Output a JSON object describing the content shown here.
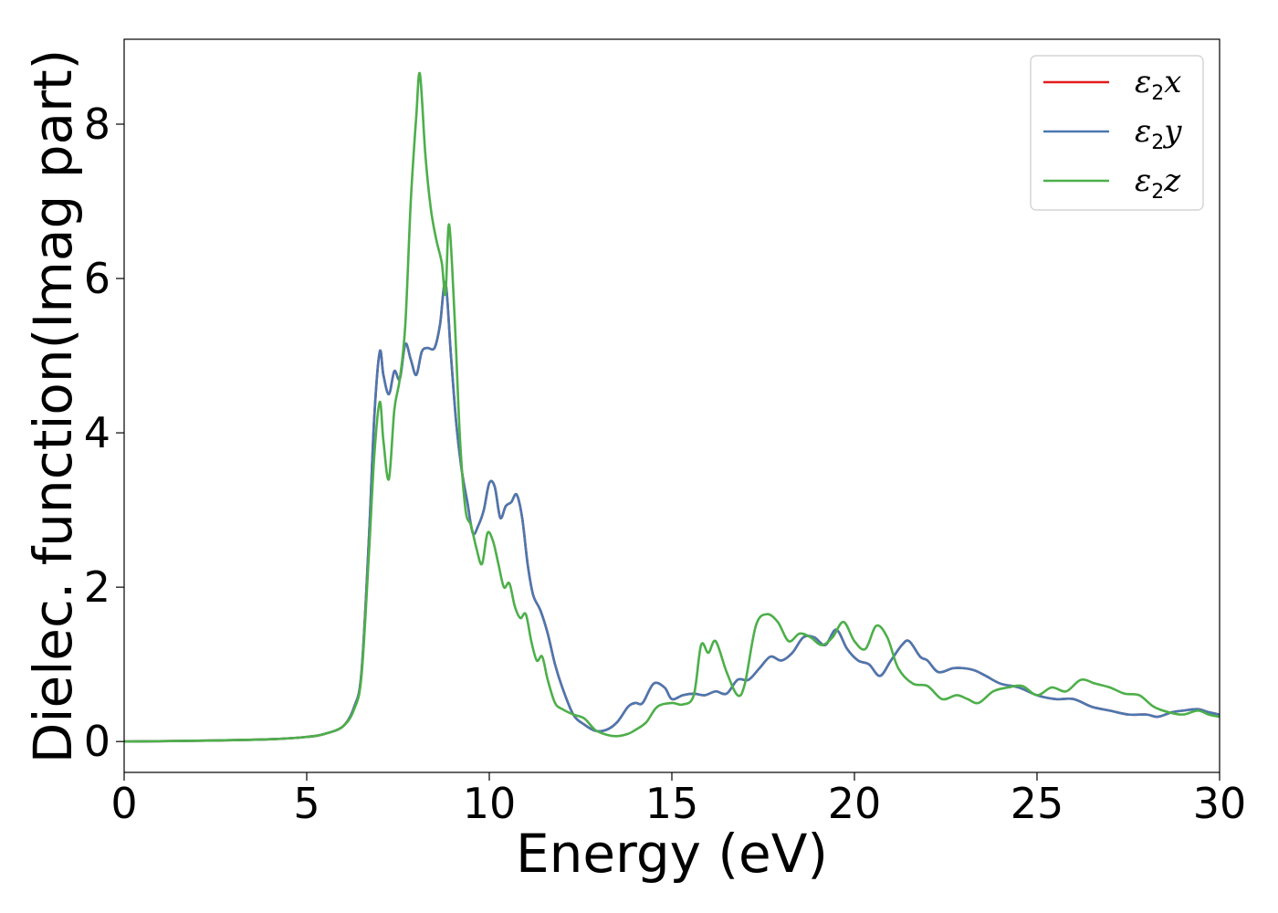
{
  "chart_data": {
    "type": "line",
    "title": "",
    "xlabel": "Energy (eV)",
    "ylabel": "Dielec. function(Imag part)",
    "xlim": [
      0,
      30
    ],
    "ylim": [
      -0.4,
      9.1
    ],
    "xticks": [
      0,
      5,
      10,
      15,
      20,
      25,
      30
    ],
    "yticks": [
      0,
      2,
      4,
      6,
      8
    ],
    "grid": false,
    "legend_position": "top-right",
    "series": [
      {
        "name": "ε2x",
        "legend_base": "ε",
        "legend_sub": "2",
        "legend_var": "x",
        "color": "#e41a1c",
        "x": [
          0,
          2,
          4,
          5,
          5.5,
          6,
          6.3,
          6.5,
          6.7,
          6.85,
          7.0,
          7.1,
          7.25,
          7.4,
          7.55,
          7.7,
          7.85,
          8.0,
          8.15,
          8.3,
          8.5,
          8.65,
          8.8,
          8.95,
          9.1,
          9.25,
          9.4,
          9.55,
          9.7,
          9.85,
          10.0,
          10.15,
          10.3,
          10.45,
          10.6,
          10.75,
          10.9,
          11.05,
          11.2,
          11.4,
          11.6,
          11.8,
          12.0,
          12.3,
          12.6,
          12.9,
          13.2,
          13.5,
          13.8,
          14.0,
          14.2,
          14.5,
          14.8,
          15.0,
          15.3,
          15.6,
          15.9,
          16.2,
          16.5,
          16.8,
          17.1,
          17.4,
          17.7,
          18.0,
          18.3,
          18.6,
          18.9,
          19.2,
          19.5,
          19.8,
          20.1,
          20.4,
          20.7,
          21.0,
          21.3,
          21.5,
          21.8,
          22.0,
          22.3,
          22.7,
          23.0,
          23.3,
          23.6,
          24.0,
          24.5,
          25.0,
          25.5,
          26.0,
          26.5,
          27.0,
          27.5,
          28.0,
          28.3,
          28.7,
          29.0,
          29.4,
          29.7,
          30.0
        ],
        "values": [
          0.0,
          0.01,
          0.03,
          0.06,
          0.1,
          0.2,
          0.45,
          0.9,
          2.6,
          4.2,
          5.05,
          4.75,
          4.5,
          4.8,
          4.7,
          5.15,
          4.95,
          4.75,
          5.05,
          5.1,
          5.1,
          5.4,
          5.95,
          5.0,
          4.1,
          3.5,
          3.1,
          2.7,
          2.8,
          3.0,
          3.35,
          3.3,
          2.9,
          3.05,
          3.1,
          3.2,
          2.9,
          2.3,
          1.9,
          1.7,
          1.4,
          1.0,
          0.7,
          0.35,
          0.22,
          0.14,
          0.15,
          0.25,
          0.45,
          0.5,
          0.5,
          0.75,
          0.7,
          0.55,
          0.6,
          0.62,
          0.6,
          0.65,
          0.62,
          0.8,
          0.8,
          0.95,
          1.1,
          1.05,
          1.15,
          1.35,
          1.35,
          1.25,
          1.45,
          1.2,
          1.05,
          1.0,
          0.85,
          1.05,
          1.25,
          1.3,
          1.1,
          1.05,
          0.9,
          0.95,
          0.95,
          0.92,
          0.85,
          0.75,
          0.7,
          0.6,
          0.55,
          0.55,
          0.45,
          0.4,
          0.35,
          0.35,
          0.32,
          0.38,
          0.4,
          0.42,
          0.38,
          0.35
        ]
      },
      {
        "name": "ε2y",
        "legend_base": "ε",
        "legend_sub": "2",
        "legend_var": "y",
        "color": "#4a78b0",
        "x": [
          0,
          2,
          4,
          5,
          5.5,
          6,
          6.3,
          6.5,
          6.7,
          6.85,
          7.0,
          7.1,
          7.25,
          7.4,
          7.55,
          7.7,
          7.85,
          8.0,
          8.15,
          8.3,
          8.5,
          8.65,
          8.8,
          8.95,
          9.1,
          9.25,
          9.4,
          9.55,
          9.7,
          9.85,
          10.0,
          10.15,
          10.3,
          10.45,
          10.6,
          10.75,
          10.9,
          11.05,
          11.2,
          11.4,
          11.6,
          11.8,
          12.0,
          12.3,
          12.6,
          12.9,
          13.2,
          13.5,
          13.8,
          14.0,
          14.2,
          14.5,
          14.8,
          15.0,
          15.3,
          15.6,
          15.9,
          16.2,
          16.5,
          16.8,
          17.1,
          17.4,
          17.7,
          18.0,
          18.3,
          18.6,
          18.9,
          19.2,
          19.5,
          19.8,
          20.1,
          20.4,
          20.7,
          21.0,
          21.3,
          21.5,
          21.8,
          22.0,
          22.3,
          22.7,
          23.0,
          23.3,
          23.6,
          24.0,
          24.5,
          25.0,
          25.5,
          26.0,
          26.5,
          27.0,
          27.5,
          28.0,
          28.3,
          28.7,
          29.0,
          29.4,
          29.7,
          30.0
        ],
        "values": [
          0.0,
          0.01,
          0.03,
          0.06,
          0.1,
          0.2,
          0.45,
          0.9,
          2.6,
          4.2,
          5.05,
          4.75,
          4.5,
          4.8,
          4.7,
          5.15,
          4.95,
          4.75,
          5.05,
          5.1,
          5.1,
          5.4,
          5.95,
          5.0,
          4.1,
          3.5,
          3.1,
          2.7,
          2.8,
          3.0,
          3.35,
          3.3,
          2.9,
          3.05,
          3.1,
          3.2,
          2.9,
          2.3,
          1.9,
          1.7,
          1.4,
          1.0,
          0.7,
          0.35,
          0.22,
          0.14,
          0.15,
          0.25,
          0.45,
          0.5,
          0.5,
          0.75,
          0.7,
          0.55,
          0.6,
          0.62,
          0.6,
          0.65,
          0.62,
          0.8,
          0.8,
          0.95,
          1.1,
          1.05,
          1.15,
          1.35,
          1.35,
          1.25,
          1.45,
          1.2,
          1.05,
          1.0,
          0.85,
          1.05,
          1.25,
          1.3,
          1.1,
          1.05,
          0.9,
          0.95,
          0.95,
          0.92,
          0.85,
          0.75,
          0.7,
          0.6,
          0.55,
          0.55,
          0.45,
          0.4,
          0.35,
          0.35,
          0.32,
          0.38,
          0.4,
          0.42,
          0.38,
          0.35
        ]
      },
      {
        "name": "ε2z",
        "legend_base": "ε",
        "legend_sub": "2",
        "legend_var": "z",
        "color": "#4daf4a",
        "x": [
          0,
          2,
          4,
          5,
          5.5,
          6,
          6.3,
          6.5,
          6.7,
          6.85,
          7.0,
          7.1,
          7.25,
          7.4,
          7.55,
          7.7,
          7.85,
          8.0,
          8.1,
          8.25,
          8.4,
          8.55,
          8.7,
          8.8,
          8.9,
          9.05,
          9.2,
          9.35,
          9.5,
          9.65,
          9.8,
          9.95,
          10.1,
          10.25,
          10.4,
          10.55,
          10.7,
          10.85,
          11.0,
          11.15,
          11.3,
          11.45,
          11.6,
          11.8,
          12.0,
          12.3,
          12.6,
          12.9,
          13.2,
          13.5,
          13.8,
          14.0,
          14.3,
          14.6,
          15.0,
          15.3,
          15.6,
          15.8,
          16.0,
          16.2,
          16.5,
          16.8,
          17.0,
          17.3,
          17.6,
          17.9,
          18.2,
          18.5,
          18.8,
          19.1,
          19.4,
          19.7,
          20.0,
          20.3,
          20.6,
          20.9,
          21.2,
          21.6,
          22.0,
          22.4,
          22.8,
          23.1,
          23.4,
          23.8,
          24.2,
          24.6,
          25.0,
          25.4,
          25.8,
          26.2,
          26.6,
          27.0,
          27.4,
          27.8,
          28.2,
          28.6,
          29.0,
          29.4,
          29.7,
          30.0
        ],
        "values": [
          0.0,
          0.01,
          0.03,
          0.06,
          0.1,
          0.2,
          0.42,
          0.85,
          2.4,
          3.7,
          4.4,
          3.9,
          3.4,
          4.3,
          4.7,
          5.4,
          7.0,
          8.1,
          8.65,
          7.6,
          6.9,
          6.5,
          6.2,
          5.8,
          6.7,
          5.5,
          3.9,
          3.0,
          2.8,
          2.5,
          2.3,
          2.7,
          2.6,
          2.3,
          2.0,
          2.05,
          1.75,
          1.6,
          1.65,
          1.3,
          1.05,
          1.1,
          0.8,
          0.5,
          0.42,
          0.35,
          0.3,
          0.15,
          0.09,
          0.07,
          0.1,
          0.15,
          0.25,
          0.45,
          0.5,
          0.48,
          0.6,
          1.25,
          1.15,
          1.3,
          0.9,
          0.6,
          0.75,
          1.5,
          1.65,
          1.55,
          1.3,
          1.4,
          1.35,
          1.25,
          1.35,
          1.55,
          1.3,
          1.2,
          1.5,
          1.35,
          0.95,
          0.75,
          0.72,
          0.55,
          0.6,
          0.55,
          0.5,
          0.65,
          0.7,
          0.72,
          0.6,
          0.7,
          0.65,
          0.8,
          0.75,
          0.7,
          0.62,
          0.6,
          0.45,
          0.38,
          0.35,
          0.4,
          0.35,
          0.32
        ]
      }
    ]
  }
}
